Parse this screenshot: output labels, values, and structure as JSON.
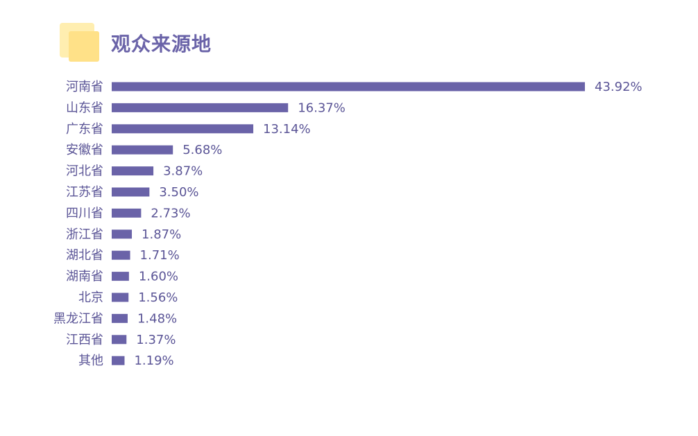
{
  "title": "观众来源地",
  "colors": {
    "bar": "#6a63a8",
    "text": "#5a5496",
    "logo_back": "#ffeeb0",
    "logo_front": "#ffe188"
  },
  "icons": [
    "logo-squares-icon"
  ],
  "chart_data": {
    "type": "bar",
    "orientation": "horizontal",
    "title": "观众来源地",
    "categories": [
      "河南省",
      "山东省",
      "广东省",
      "安徽省",
      "河北省",
      "江苏省",
      "四川省",
      "浙江省",
      "湖北省",
      "湖南省",
      "北京",
      "黑龙江省",
      "江西省",
      "其他"
    ],
    "values": [
      43.92,
      16.37,
      13.14,
      5.68,
      3.87,
      3.5,
      2.73,
      1.87,
      1.71,
      1.6,
      1.56,
      1.48,
      1.37,
      1.19
    ],
    "value_labels": [
      "43.92%",
      "16.37%",
      "13.14%",
      "5.68%",
      "3.87%",
      "3.50%",
      "2.73%",
      "1.87%",
      "1.71%",
      "1.60%",
      "1.56%",
      "1.48%",
      "1.37%",
      "1.19%"
    ],
    "unit": "%",
    "grid": false,
    "legend": "none"
  }
}
